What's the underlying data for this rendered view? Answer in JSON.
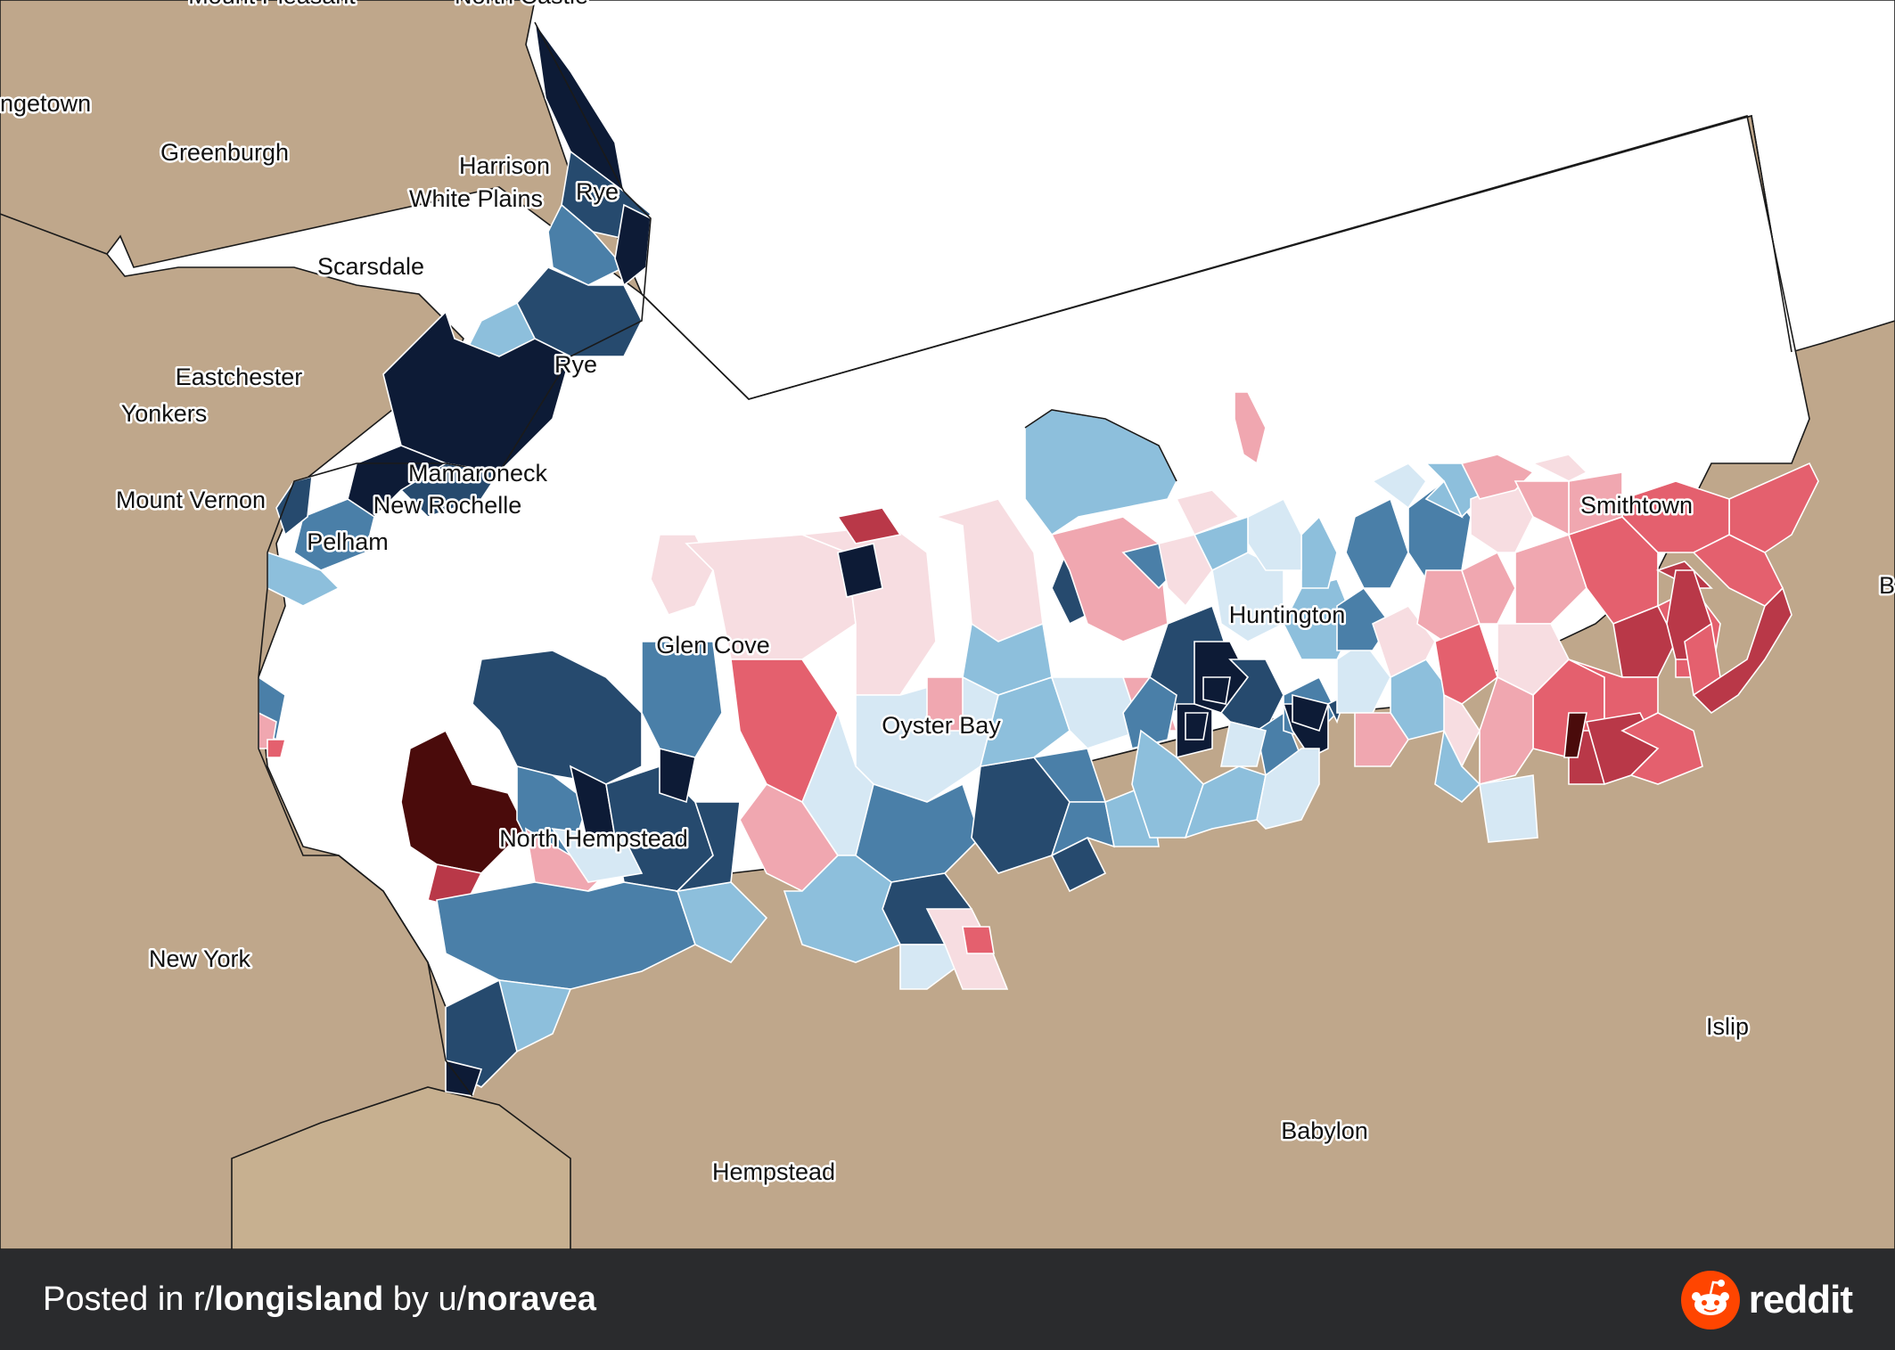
{
  "map": {
    "labels": [
      {
        "id": "mount-pleasant",
        "text": "Mount Pleasant"
      },
      {
        "id": "north-castle",
        "text": "North Castle"
      },
      {
        "id": "orangetown",
        "text": "ngetown"
      },
      {
        "id": "greenburgh",
        "text": "Greenburgh"
      },
      {
        "id": "harrison",
        "text": "Harrison"
      },
      {
        "id": "white-plains",
        "text": "White Plains"
      },
      {
        "id": "rye-1",
        "text": "Rye"
      },
      {
        "id": "scarsdale",
        "text": "Scarsdale"
      },
      {
        "id": "rye-2",
        "text": "Rye"
      },
      {
        "id": "eastchester",
        "text": "Eastchester"
      },
      {
        "id": "yonkers",
        "text": "Yonkers"
      },
      {
        "id": "mamaroneck",
        "text": "Mamaroneck"
      },
      {
        "id": "mount-vernon",
        "text": "Mount Vernon"
      },
      {
        "id": "new-rochelle",
        "text": "New Rochelle"
      },
      {
        "id": "pelham",
        "text": "Pelham"
      },
      {
        "id": "glen-cove",
        "text": "Glen Cove"
      },
      {
        "id": "oyster-bay",
        "text": "Oyster Bay"
      },
      {
        "id": "huntington",
        "text": "Huntington"
      },
      {
        "id": "smithtown",
        "text": "Smithtown"
      },
      {
        "id": "north-hempstead",
        "text": "North Hempstead"
      },
      {
        "id": "new-york",
        "text": "New York"
      },
      {
        "id": "islip",
        "text": "Islip"
      },
      {
        "id": "babylon",
        "text": "Babylon"
      },
      {
        "id": "hempstead",
        "text": "Hempstead"
      },
      {
        "id": "brookhaven-edge",
        "text": "B"
      }
    ],
    "colors": {
      "land": "#bfa78b",
      "water": "#ffffff",
      "dem_darkest": "#0d1b36",
      "dem_dark": "#264a6e",
      "dem_mid": "#4a7fa8",
      "dem_light": "#8dbfdc",
      "dem_lightest": "#d6e8f4",
      "rep_lightest": "#f7dde1",
      "rep_light": "#f0a7b0",
      "rep_mid": "#e4606e",
      "rep_dark": "#b93848",
      "rep_darkest": "#4a0b0b"
    }
  },
  "footer": {
    "posted_prefix": "Posted in r/",
    "subreddit": "longisland",
    "by": " by u/",
    "username": "noravea",
    "brand": "reddit"
  }
}
